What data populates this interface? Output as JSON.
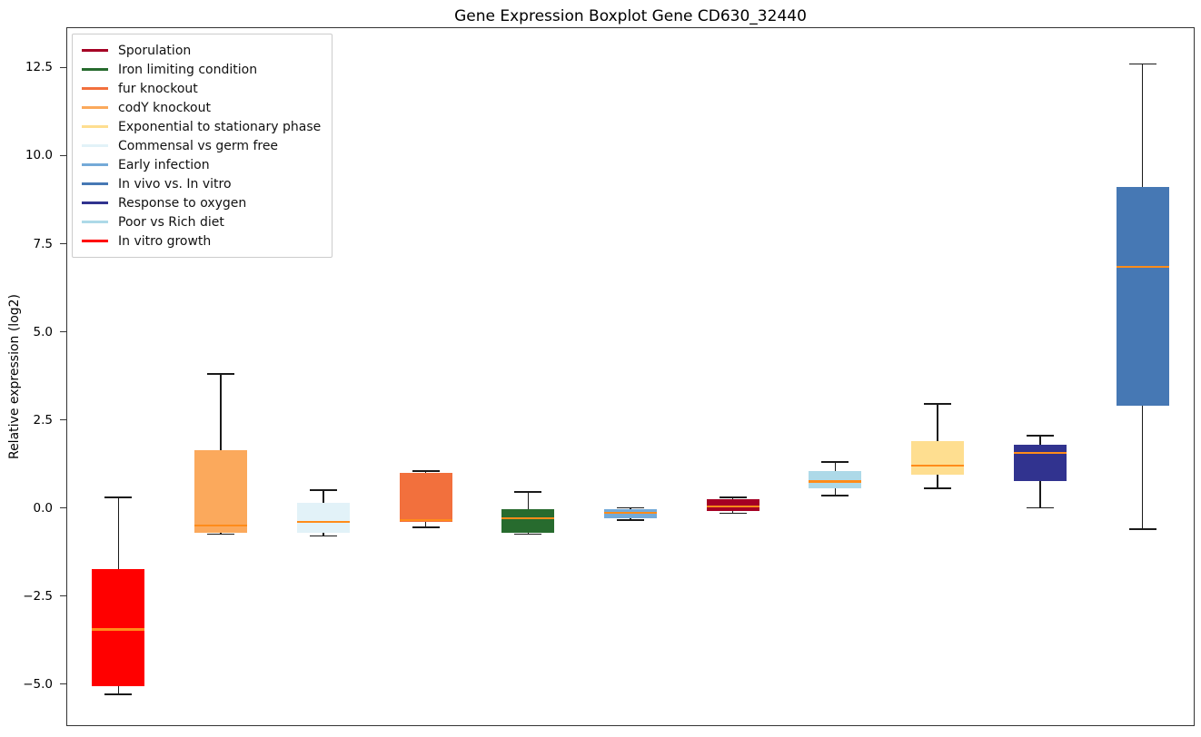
{
  "figure": {
    "background": "#ffffff",
    "frame_color": "#333333"
  },
  "chart_data": {
    "type": "boxplot",
    "title": "Gene Expression Boxplot Gene CD630_32440",
    "xlabel": "",
    "ylabel": "Relative expression (log2)",
    "ylim": [
      -6.17,
      13.62
    ],
    "grid": false,
    "legend_position": "upper-left",
    "median_color": "#ff8c1a",
    "whisker_color": "#1a1a1a",
    "yticks": [
      {
        "value": 12.5,
        "label": "12.5"
      },
      {
        "value": 10.0,
        "label": "10.0"
      },
      {
        "value": 7.5,
        "label": "7.5"
      },
      {
        "value": 5.0,
        "label": "5.0"
      },
      {
        "value": 2.5,
        "label": "2.5"
      },
      {
        "value": 0.0,
        "label": "0.0"
      },
      {
        "value": -2.5,
        "label": "−2.5"
      },
      {
        "value": -5.0,
        "label": "−5.0"
      }
    ],
    "legend": [
      {
        "label": "Sporulation",
        "color": "#a50024"
      },
      {
        "label": "Iron limiting condition",
        "color": "#276b2e"
      },
      {
        "label": "fur knockout",
        "color": "#f2703d"
      },
      {
        "label": "codY knockout",
        "color": "#fba95c"
      },
      {
        "label": "Exponential to stationary phase",
        "color": "#fede90"
      },
      {
        "label": "Commensal vs germ free",
        "color": "#e2f2f8"
      },
      {
        "label": "Early infection",
        "color": "#74aad8"
      },
      {
        "label": "In vivo vs. In vitro",
        "color": "#4678b4"
      },
      {
        "label": "Response to oxygen",
        "color": "#31338f"
      },
      {
        "label": "Poor vs Rich diet",
        "color": "#add9e8"
      },
      {
        "label": "In vitro growth",
        "color": "#ff0000"
      }
    ],
    "boxes": [
      {
        "label": "In vitro growth",
        "color": "#ff0000",
        "whislo": -5.3,
        "q1": -5.05,
        "med": -3.45,
        "q3": -1.75,
        "whishi": 0.3
      },
      {
        "label": "codY knockout",
        "color": "#fba95c",
        "whislo": -0.75,
        "q1": -0.7,
        "med": -0.5,
        "q3": 1.65,
        "whishi": 3.8
      },
      {
        "label": "Commensal vs germ free",
        "color": "#e2f2f8",
        "whislo": -0.8,
        "q1": -0.7,
        "med": -0.4,
        "q3": 0.15,
        "whishi": 0.5
      },
      {
        "label": "fur knockout",
        "color": "#f2703d",
        "whislo": -0.55,
        "q1": -0.4,
        "med": -0.35,
        "q3": 1.0,
        "whishi": 1.05
      },
      {
        "label": "Iron limiting condition",
        "color": "#276b2e",
        "whislo": -0.75,
        "q1": -0.7,
        "med": -0.3,
        "q3": -0.05,
        "whishi": 0.45
      },
      {
        "label": "Early infection",
        "color": "#74aad8",
        "whislo": -0.35,
        "q1": -0.3,
        "med": -0.15,
        "q3": -0.05,
        "whishi": 0.0
      },
      {
        "label": "Sporulation",
        "color": "#a50024",
        "whislo": -0.15,
        "q1": -0.1,
        "med": 0.05,
        "q3": 0.25,
        "whishi": 0.3
      },
      {
        "label": "Poor vs Rich diet",
        "color": "#add9e8",
        "whislo": 0.35,
        "q1": 0.55,
        "med": 0.75,
        "q3": 1.05,
        "whishi": 1.3
      },
      {
        "label": "Exponential to stationary phase",
        "color": "#fede90",
        "whislo": 0.55,
        "q1": 0.95,
        "med": 1.2,
        "q3": 1.9,
        "whishi": 2.95
      },
      {
        "label": "Response to oxygen",
        "color": "#31338f",
        "whislo": 0.0,
        "q1": 0.75,
        "med": 1.55,
        "q3": 1.8,
        "whishi": 2.05
      },
      {
        "label": "In vivo vs. In vitro",
        "color": "#4678b4",
        "whislo": -0.6,
        "q1": 2.9,
        "med": 6.85,
        "q3": 9.1,
        "whishi": 12.6
      }
    ]
  }
}
